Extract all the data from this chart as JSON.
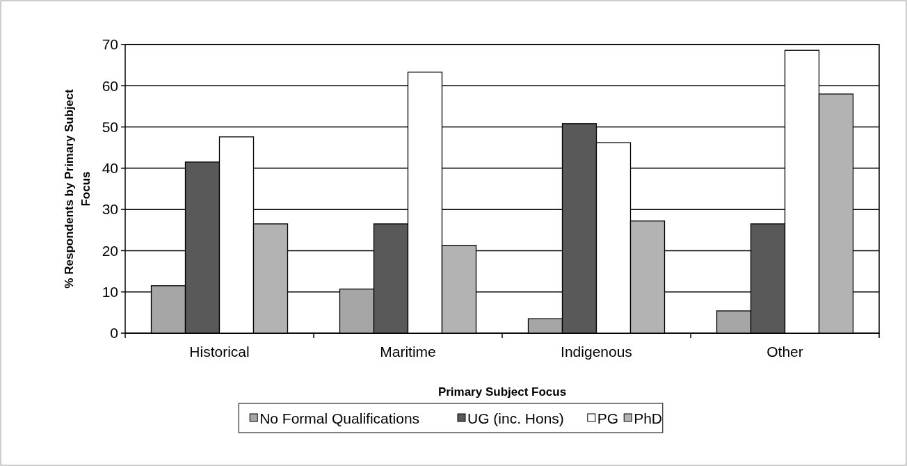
{
  "chart_data": {
    "type": "bar",
    "xlabel": "Primary Subject Focus",
    "ylabel": "% Respondents by Primary Subject Focus",
    "categories": [
      "Historical",
      "Maritime",
      "Indigenous",
      "Other"
    ],
    "series": [
      {
        "name": "No Formal Qualifications",
        "color": "#a6a6a6",
        "values": [
          11.5,
          10.7,
          3.5,
          5.4
        ]
      },
      {
        "name": "UG (inc. Hons)",
        "color": "#595959",
        "values": [
          41.5,
          26.5,
          50.8,
          26.5
        ]
      },
      {
        "name": "PG",
        "color": "#ffffff",
        "values": [
          47.6,
          63.3,
          46.2,
          68.6
        ]
      },
      {
        "name": "PhD",
        "color": "#b3b3b3",
        "values": [
          26.5,
          21.3,
          27.2,
          58.0
        ]
      }
    ],
    "ylim": [
      0,
      70
    ],
    "yticks": [
      0,
      10,
      20,
      30,
      40,
      50,
      60,
      70
    ],
    "grid": "y",
    "legend": "bottom"
  }
}
